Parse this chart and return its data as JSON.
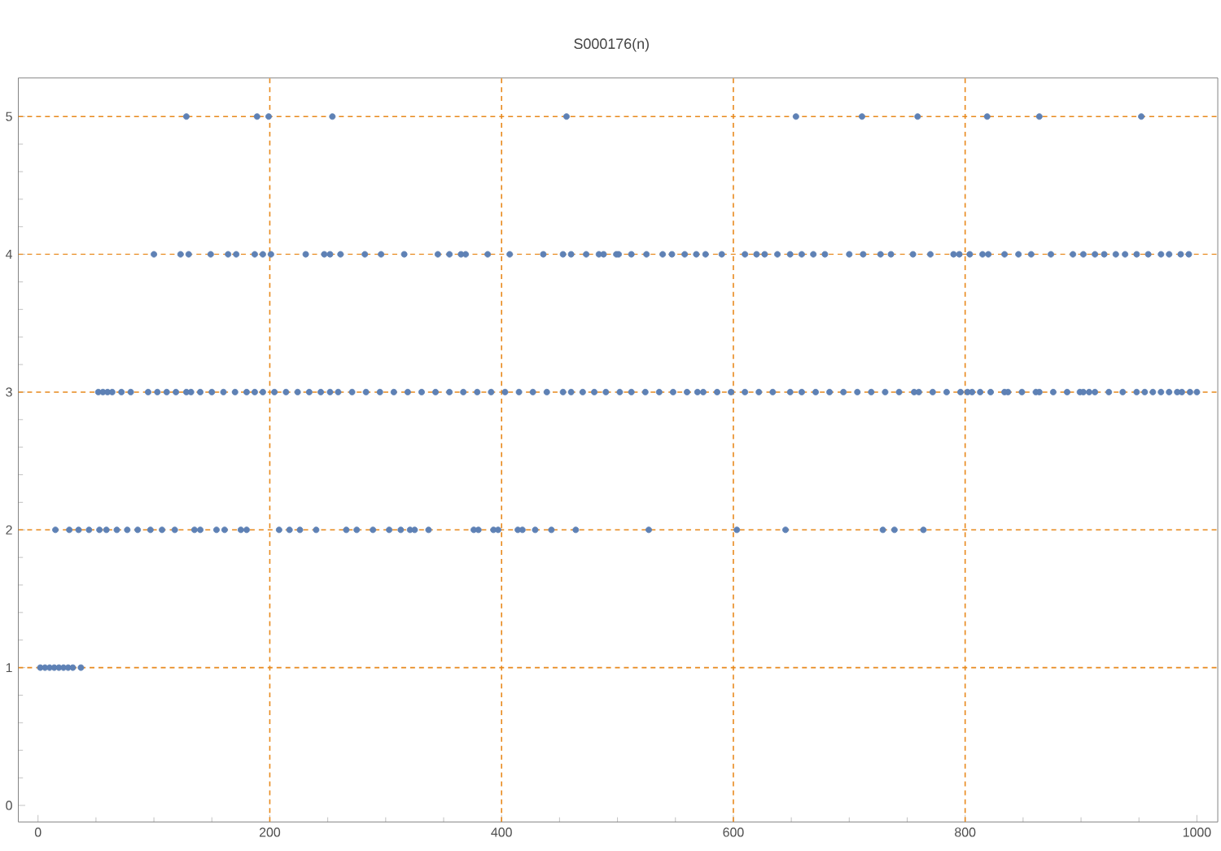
{
  "chart_data": {
    "type": "scatter",
    "title": "S000176(n)",
    "x": [
      128,
      189,
      199,
      254,
      456,
      654,
      711,
      759,
      819,
      864,
      952,
      100,
      123,
      130,
      149,
      164,
      171,
      187,
      194,
      201,
      231,
      247,
      252,
      261,
      282,
      296,
      316,
      345,
      355,
      365,
      369,
      388,
      407,
      436,
      453,
      460,
      473,
      484,
      488,
      499,
      501,
      512,
      525,
      539,
      547,
      558,
      568,
      576,
      590,
      610,
      620,
      627,
      638,
      649,
      659,
      669,
      679,
      700,
      712,
      727,
      736,
      755,
      770,
      790,
      795,
      804,
      815,
      820,
      834,
      846,
      857,
      874,
      893,
      902,
      912,
      920,
      930,
      938,
      948,
      958,
      969,
      976,
      986,
      993,
      52,
      56,
      60,
      64,
      72,
      80,
      95,
      103,
      111,
      119,
      128,
      132,
      140,
      150,
      160,
      170,
      180,
      187,
      194,
      204,
      214,
      224,
      234,
      244,
      252,
      259,
      271,
      283,
      295,
      307,
      319,
      331,
      343,
      355,
      367,
      379,
      391,
      403,
      415,
      427,
      439,
      453,
      460,
      470,
      480,
      490,
      502,
      512,
      524,
      536,
      548,
      560,
      569,
      574,
      586,
      598,
      610,
      622,
      634,
      649,
      659,
      671,
      683,
      695,
      707,
      719,
      731,
      743,
      756,
      760,
      772,
      784,
      796,
      802,
      806,
      813,
      822,
      834,
      837,
      849,
      861,
      864,
      876,
      888,
      899,
      902,
      907,
      912,
      924,
      936,
      948,
      955,
      962,
      969,
      976,
      983,
      987,
      994,
      1000,
      15,
      27,
      35,
      44,
      53,
      59,
      68,
      77,
      86,
      97,
      107,
      118,
      135,
      140,
      154,
      161,
      175,
      180,
      208,
      217,
      226,
      240,
      266,
      275,
      289,
      303,
      313,
      321,
      325,
      337,
      376,
      380,
      393,
      397,
      414,
      418,
      429,
      443,
      464,
      527,
      603,
      645,
      729,
      739,
      764,
      2,
      6,
      10,
      14,
      18,
      22,
      26,
      30,
      37
    ],
    "series": [
      {
        "color": "#5e81b5",
        "values": [
          5,
          5,
          5,
          5,
          5,
          5,
          5,
          5,
          5,
          5,
          5,
          4,
          4,
          4,
          4,
          4,
          4,
          4,
          4,
          4,
          4,
          4,
          4,
          4,
          4,
          4,
          4,
          4,
          4,
          4,
          4,
          4,
          4,
          4,
          4,
          4,
          4,
          4,
          4,
          4,
          4,
          4,
          4,
          4,
          4,
          4,
          4,
          4,
          4,
          4,
          4,
          4,
          4,
          4,
          4,
          4,
          4,
          4,
          4,
          4,
          4,
          4,
          4,
          4,
          4,
          4,
          4,
          4,
          4,
          4,
          4,
          4,
          4,
          4,
          4,
          4,
          4,
          4,
          4,
          4,
          4,
          4,
          4,
          4,
          3,
          3,
          3,
          3,
          3,
          3,
          3,
          3,
          3,
          3,
          3,
          3,
          3,
          3,
          3,
          3,
          3,
          3,
          3,
          3,
          3,
          3,
          3,
          3,
          3,
          3,
          3,
          3,
          3,
          3,
          3,
          3,
          3,
          3,
          3,
          3,
          3,
          3,
          3,
          3,
          3,
          3,
          3,
          3,
          3,
          3,
          3,
          3,
          3,
          3,
          3,
          3,
          3,
          3,
          3,
          3,
          3,
          3,
          3,
          3,
          3,
          3,
          3,
          3,
          3,
          3,
          3,
          3,
          3,
          3,
          3,
          3,
          3,
          3,
          3,
          3,
          3,
          3,
          3,
          3,
          3,
          3,
          3,
          3,
          3,
          3,
          3,
          3,
          3,
          3,
          3,
          3,
          3,
          3,
          3,
          3,
          3,
          3,
          3,
          2,
          2,
          2,
          2,
          2,
          2,
          2,
          2,
          2,
          2,
          2,
          2,
          2,
          2,
          2,
          2,
          2,
          2,
          2,
          2,
          2,
          2,
          2,
          2,
          2,
          2,
          2,
          2,
          2,
          2,
          2,
          2,
          2,
          2,
          2,
          2,
          2,
          2,
          2,
          2,
          2,
          2,
          2,
          2,
          2,
          1,
          1,
          1,
          1,
          1,
          1,
          1,
          1,
          1
        ]
      }
    ],
    "marker": "circle",
    "xlim": [
      -17,
      1018
    ],
    "ylim": [
      -0.12,
      5.28
    ],
    "xticks": [
      0,
      200,
      400,
      600,
      800,
      1000
    ],
    "yticks": [
      0,
      1,
      2,
      3,
      4,
      5
    ],
    "ref_lines": [
      {
        "axis": "x",
        "value": 200,
        "color": "#e8891c",
        "line_style": "dashed"
      },
      {
        "axis": "x",
        "value": 400,
        "color": "#e8891c",
        "line_style": "dashed"
      },
      {
        "axis": "x",
        "value": 600,
        "color": "#e8891c",
        "line_style": "dashed"
      },
      {
        "axis": "x",
        "value": 800,
        "color": "#e8891c",
        "line_style": "dashed"
      },
      {
        "axis": "y",
        "value": 1,
        "color": "#e8891c",
        "line_style": "dashed"
      },
      {
        "axis": "y",
        "value": 2,
        "color": "#e8891c",
        "line_style": "dashed"
      },
      {
        "axis": "y",
        "value": 3,
        "color": "#e8891c",
        "line_style": "dashed"
      },
      {
        "axis": "y",
        "value": 4,
        "color": "#e8891c",
        "line_style": "dashed"
      },
      {
        "axis": "y",
        "value": 5,
        "color": "#e8891c",
        "line_style": "dashed"
      }
    ]
  }
}
